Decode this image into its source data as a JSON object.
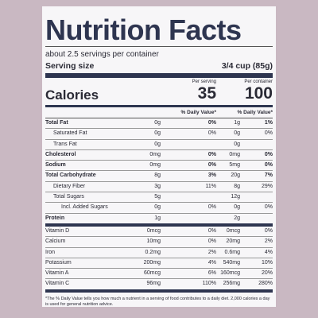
{
  "title": "Nutrition Facts",
  "servings": "about 2.5 servings per container",
  "serving_size_label": "Serving size",
  "serving_size": "3/4 cup (85g)",
  "per_serving": "Per serving",
  "per_container": "Per container",
  "calories_label": "Calories",
  "calories_serving": "35",
  "calories_container": "100",
  "dv_header_serving": "% Daily Value*",
  "dv_header_container": "% Daily Value*",
  "rows": [
    {
      "name": "Total Fat",
      "serving": "0g",
      "serving_dv": "0%",
      "container": "1g",
      "container_dv": "1%"
    },
    {
      "name": "Saturated Fat",
      "serving": "0g",
      "serving_dv": "0%",
      "container": "0g",
      "container_dv": "0%"
    },
    {
      "name": "Trans Fat",
      "serving": "0g",
      "container": "0g"
    },
    {
      "name": "Cholesterol",
      "serving": "0mg",
      "serving_dv": "0%",
      "container": "0mg",
      "container_dv": "0%"
    },
    {
      "name": "Sodium",
      "serving": "0mg",
      "serving_dv": "0%",
      "container": "5mg",
      "container_dv": "0%"
    },
    {
      "name": "Total Carbohydrate",
      "serving": "8g",
      "serving_dv": "3%",
      "container": "20g",
      "container_dv": "7%"
    },
    {
      "name": "Dietary Fiber",
      "serving": "3g",
      "serving_dv": "11%",
      "container": "8g",
      "container_dv": "29%"
    },
    {
      "name": "Total Sugars",
      "serving": "5g",
      "container": "12g"
    },
    {
      "name": "Incl. Added Sugars",
      "serving": "0g",
      "serving_dv": "0%",
      "container": "0g",
      "container_dv": "0%"
    },
    {
      "name": "Protein",
      "serving": "1g",
      "container": "2g"
    },
    {
      "name": "Vitamin D",
      "serving": "0mcg",
      "serving_dv": "0%",
      "container": "0mcg",
      "container_dv": "0%"
    },
    {
      "name": "Calcium",
      "serving": "10mg",
      "serving_dv": "0%",
      "container": "20mg",
      "container_dv": "2%"
    },
    {
      "name": "Iron",
      "serving": "0.2mg",
      "serving_dv": "2%",
      "container": "0.6mg",
      "container_dv": "4%"
    },
    {
      "name": "Potassium",
      "serving": "200mg",
      "serving_dv": "4%",
      "container": "540mg",
      "container_dv": "10%"
    },
    {
      "name": "Vitamin A",
      "serving": "60mcg",
      "serving_dv": "6%",
      "container": "160mcg",
      "container_dv": "20%"
    },
    {
      "name": "Vitamin C",
      "serving": "96mg",
      "serving_dv": "110%",
      "container": "256mg",
      "container_dv": "280%"
    }
  ],
  "footnote": "*The % Daily Value tells you how much a nutrient in a serving of food contributes to a daily diet. 2,000 calories a day is used for general nutrition advice."
}
